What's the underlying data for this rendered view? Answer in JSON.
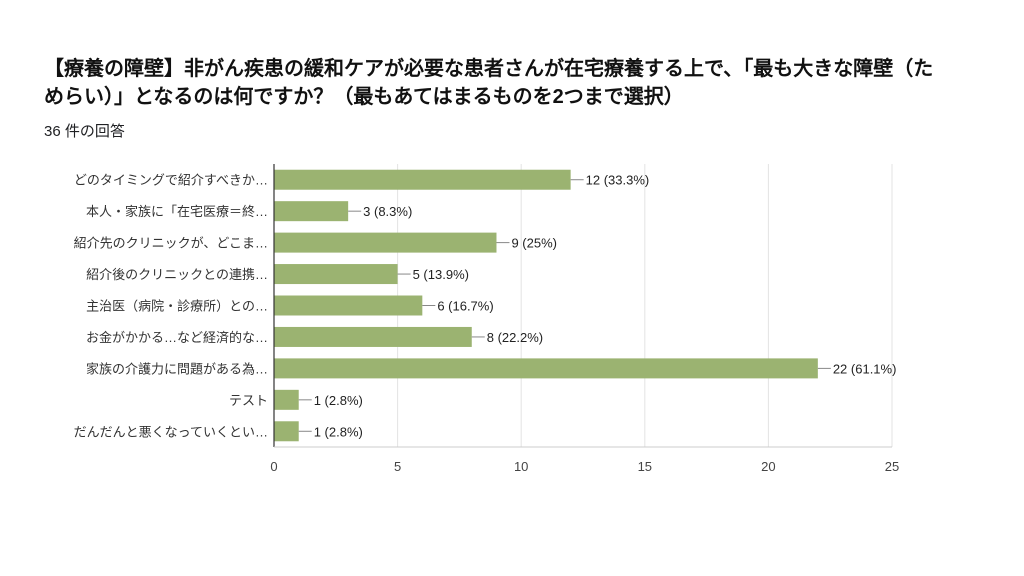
{
  "chart_data": {
    "type": "bar",
    "orientation": "horizontal",
    "title": "【療養の障壁】非がん疾患の緩和ケアが必要な患者さんが在宅療養する上で、「最も大きな障壁（ためらい）」となるのは何ですか？（最もあてはまるものを2つまで選択）",
    "subtitle": "36 件の回答",
    "categories": [
      "どのタイミングで紹介すべきか…",
      "本人・家族に「在宅医療＝終…",
      "紹介先のクリニックが、どこま…",
      "紹介後のクリニックとの連携…",
      "主治医（病院・診療所）との…",
      "お金がかかる…など経済的な…",
      "家族の介護力に問題がある為…",
      "テスト",
      "だんだんと悪くなっていくとい…"
    ],
    "values": [
      12,
      3,
      9,
      5,
      6,
      8,
      22,
      1,
      1
    ],
    "data_labels": [
      "12 (33.3%)",
      "3 (8.3%)",
      "9 (25%)",
      "5 (13.9%)",
      "6 (16.7%)",
      "8 (22.2%)",
      "22 (61.1%)",
      "1 (2.8%)",
      "1 (2.8%)"
    ],
    "xlim": [
      0,
      25
    ],
    "xticks": [
      "0",
      "5",
      "10",
      "15",
      "20",
      "25"
    ],
    "xlabel": "",
    "ylabel": "",
    "grid": true,
    "bar_color": "#9bb371"
  }
}
